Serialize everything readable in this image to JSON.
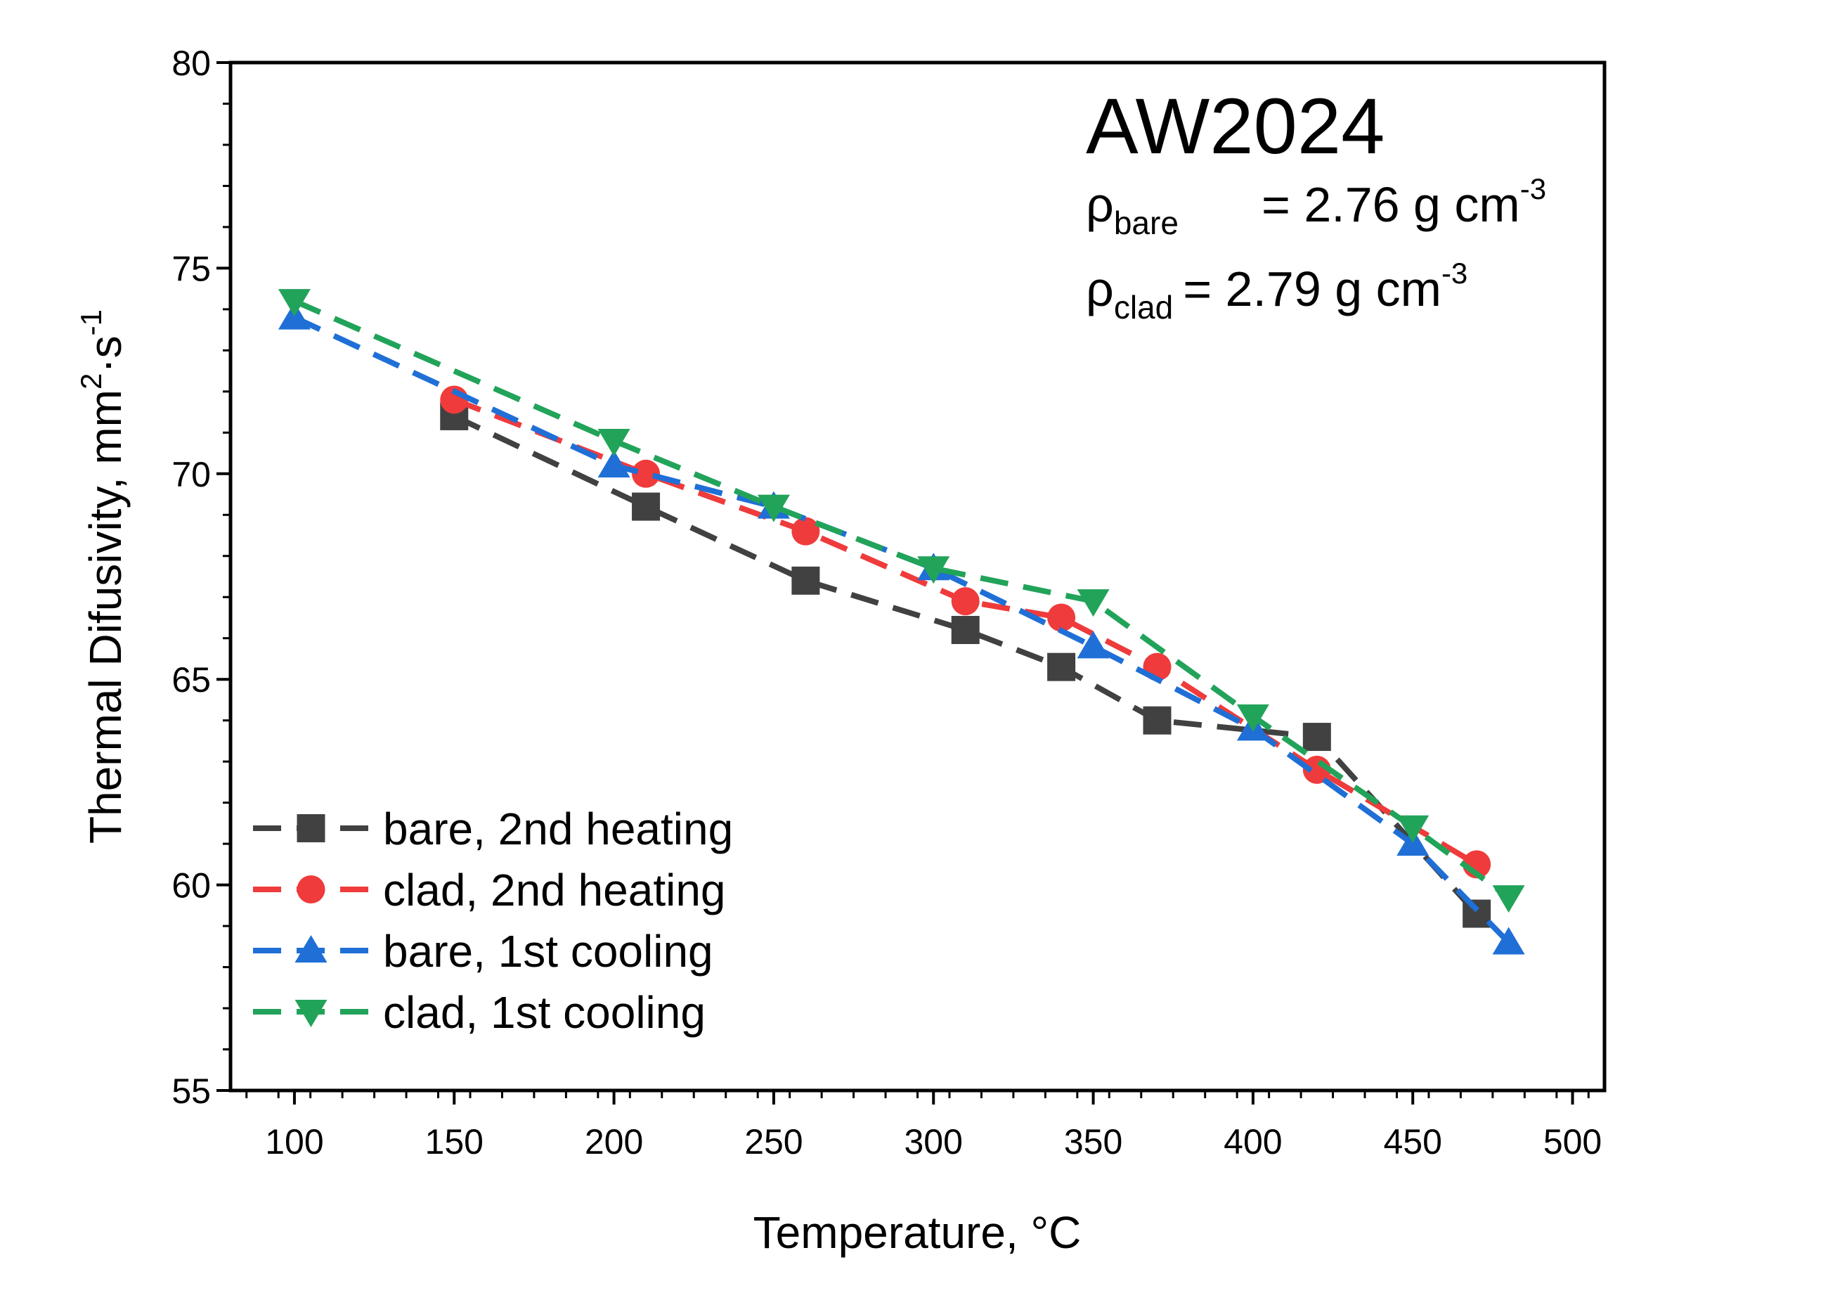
{
  "chart_data": {
    "type": "line",
    "title": "AW2024",
    "annotations": {
      "bare_density": {
        "symbol": "ρ",
        "subscript": "bare",
        "text": "= 2.76 g cm",
        "superscript": "-3"
      },
      "clad_density": {
        "symbol": "ρ",
        "subscript": "clad",
        "text": "= 2.79 g cm",
        "superscript": "-3"
      }
    },
    "xlabel": "Temperature, °C",
    "ylabel": {
      "text": "Thermal Difusivity, mm",
      "sup1": "2",
      "mid": "·s",
      "sup2": "-1"
    },
    "xlim": [
      80,
      510
    ],
    "ylim": [
      55,
      80
    ],
    "x_ticks": [
      100,
      150,
      200,
      250,
      300,
      350,
      400,
      450,
      500
    ],
    "y_ticks": [
      55,
      60,
      65,
      70,
      75,
      80
    ],
    "grid": false,
    "legend_position": "lower-left",
    "series": [
      {
        "name": "bare, 2nd heating",
        "color": "#414141",
        "marker": "square",
        "x": [
          150,
          210,
          260,
          310,
          340,
          370,
          420,
          470
        ],
        "y": [
          71.4,
          69.2,
          67.4,
          66.2,
          65.3,
          64.0,
          63.6,
          59.3
        ]
      },
      {
        "name": "clad, 2nd heating",
        "color": "#ef3b3b",
        "marker": "circle",
        "x": [
          150,
          210,
          260,
          310,
          340,
          370,
          420,
          470
        ],
        "y": [
          71.8,
          70.0,
          68.6,
          66.9,
          66.5,
          65.3,
          62.8,
          60.5
        ]
      },
      {
        "name": "bare, 1st cooling",
        "color": "#1f6fd6",
        "marker": "triangle-up",
        "x": [
          100,
          200,
          250,
          300,
          350,
          400,
          450,
          480
        ],
        "y": [
          73.8,
          70.2,
          69.2,
          67.7,
          65.8,
          63.8,
          61.0,
          58.6
        ]
      },
      {
        "name": "clad, 1st cooling",
        "color": "#22a35a",
        "marker": "triangle-down",
        "x": [
          100,
          200,
          250,
          300,
          350,
          400,
          450,
          480
        ],
        "y": [
          74.2,
          70.8,
          69.2,
          67.7,
          66.9,
          64.1,
          61.4,
          59.7
        ]
      }
    ]
  }
}
